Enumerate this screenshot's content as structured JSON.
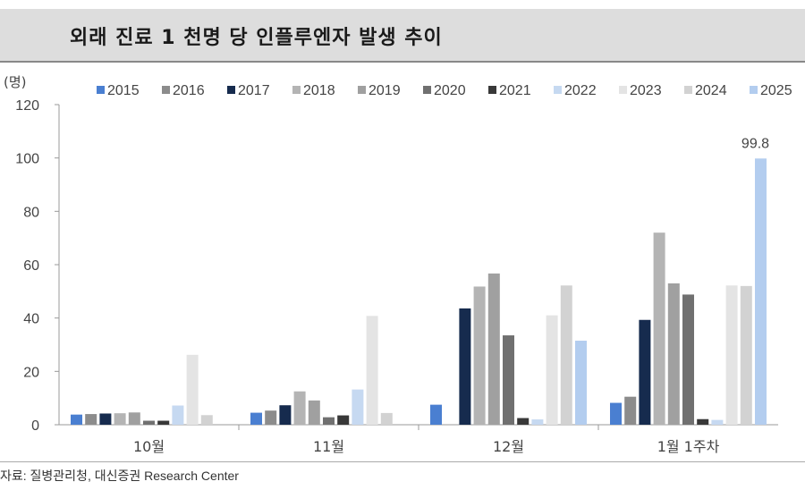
{
  "title": "외래 진료 1 천명 당 인플루엔자 발생 추이",
  "source": "자료: 질병관리청, 대신증권 Research Center",
  "chart_data": {
    "type": "bar",
    "unit_label": "(명)",
    "categories": [
      "10월",
      "11월",
      "12월",
      "1월 1주차"
    ],
    "ylim": [
      0,
      120
    ],
    "yticks": [
      0,
      20,
      40,
      60,
      80,
      100,
      120
    ],
    "grid": false,
    "legend_position": "top",
    "series": [
      {
        "name": "2015",
        "color": "#4a7fd1",
        "values": [
          3.8,
          4.5,
          7.5,
          8.2
        ]
      },
      {
        "name": "2016",
        "color": "#8c8c8c",
        "values": [
          4.0,
          5.3,
          null,
          10.5
        ]
      },
      {
        "name": "2017",
        "color": "#162b4e",
        "values": [
          4.2,
          7.3,
          43.6,
          39.3
        ]
      },
      {
        "name": "2018",
        "color": "#b4b4b4",
        "values": [
          4.3,
          12.5,
          51.8,
          72.0
        ]
      },
      {
        "name": "2019",
        "color": "#a0a0a0",
        "values": [
          4.6,
          9.1,
          56.7,
          53.0
        ]
      },
      {
        "name": "2020",
        "color": "#707070",
        "values": [
          1.5,
          2.8,
          33.5,
          48.8
        ]
      },
      {
        "name": "2021",
        "color": "#383838",
        "values": [
          1.5,
          3.5,
          2.5,
          2.1
        ]
      },
      {
        "name": "2022",
        "color": "#c6d9f1",
        "values": [
          7.2,
          13.2,
          2.0,
          1.8
        ]
      },
      {
        "name": "2023",
        "color": "#e4e4e4",
        "values": [
          26.2,
          40.8,
          41.0,
          52.2
        ]
      },
      {
        "name": "2024",
        "color": "#d2d2d2",
        "values": [
          3.6,
          4.4,
          52.2,
          52.0
        ]
      },
      {
        "name": "2025",
        "color": "#b3cdef",
        "values": [
          null,
          null,
          31.5,
          99.8
        ]
      }
    ],
    "annotations": [
      {
        "category": "1월 1주차",
        "series": "2025",
        "text": "99.8"
      }
    ]
  }
}
